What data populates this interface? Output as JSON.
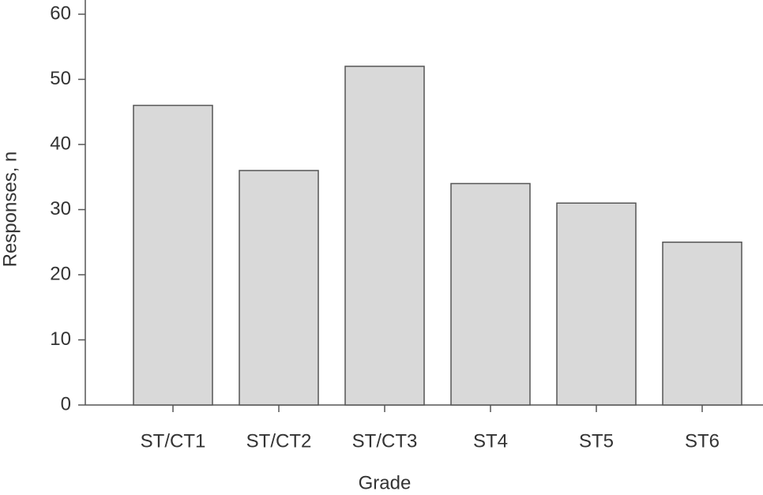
{
  "chart_data": {
    "type": "bar",
    "categories": [
      "ST/CT1",
      "ST/CT2",
      "ST/CT3",
      "ST4",
      "ST5",
      "ST6"
    ],
    "values": [
      46,
      36,
      52,
      34,
      31,
      25
    ],
    "color": "#d9d9d9",
    "xlabel": "Grade",
    "ylabel": "Responses, n",
    "ylim": [
      0,
      60
    ],
    "yticks": [
      0,
      10,
      20,
      30,
      40,
      50,
      60
    ],
    "grid": false
  }
}
